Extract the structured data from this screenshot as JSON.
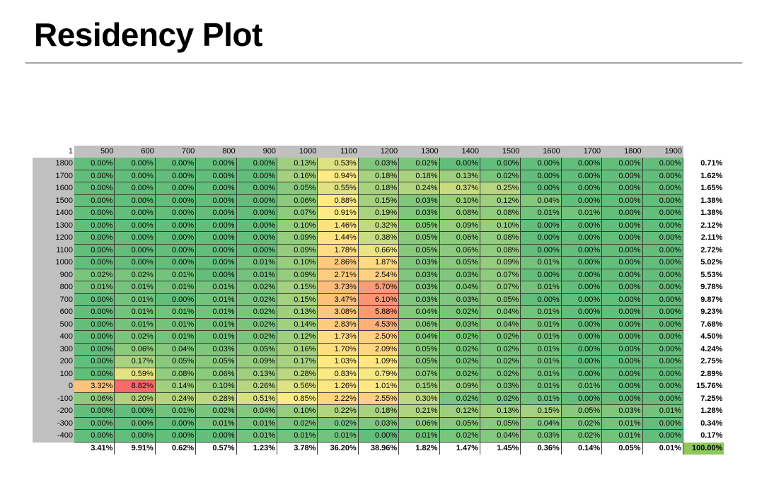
{
  "title": "Residency Plot",
  "chart_data": {
    "type": "heatmap",
    "title": "Residency Plot",
    "corner_label": "1",
    "x_labels": [
      "500",
      "600",
      "700",
      "800",
      "900",
      "1000",
      "1100",
      "1200",
      "1300",
      "1400",
      "1500",
      "1600",
      "1700",
      "1800",
      "1900"
    ],
    "y_labels": [
      "1800",
      "1700",
      "1600",
      "1500",
      "1400",
      "1300",
      "1200",
      "1100",
      "1000",
      "900",
      "800",
      "700",
      "600",
      "500",
      "400",
      "300",
      "200",
      "100",
      "0",
      "-100",
      "-200",
      "-300",
      "-400"
    ],
    "values": [
      [
        "0.00%",
        "0.00%",
        "0.00%",
        "0.00%",
        "0.00%",
        "0.13%",
        "0.53%",
        "0.03%",
        "0.02%",
        "0.00%",
        "0.00%",
        "0.00%",
        "0.00%",
        "0.00%",
        "0.00%"
      ],
      [
        "0.00%",
        "0.00%",
        "0.00%",
        "0.00%",
        "0.00%",
        "0.16%",
        "0.94%",
        "0.18%",
        "0.18%",
        "0.13%",
        "0.02%",
        "0.00%",
        "0.00%",
        "0.00%",
        "0.00%"
      ],
      [
        "0.00%",
        "0.00%",
        "0.00%",
        "0.00%",
        "0.00%",
        "0.05%",
        "0.55%",
        "0.18%",
        "0.24%",
        "0.37%",
        "0.25%",
        "0.00%",
        "0.00%",
        "0.00%",
        "0.00%"
      ],
      [
        "0.00%",
        "0.00%",
        "0.00%",
        "0.00%",
        "0.00%",
        "0.06%",
        "0.88%",
        "0.15%",
        "0.03%",
        "0.10%",
        "0.12%",
        "0.04%",
        "0.00%",
        "0.00%",
        "0.00%"
      ],
      [
        "0.00%",
        "0.00%",
        "0.00%",
        "0.00%",
        "0.00%",
        "0.07%",
        "0.91%",
        "0.19%",
        "0.03%",
        "0.08%",
        "0.08%",
        "0.01%",
        "0.01%",
        "0.00%",
        "0.00%"
      ],
      [
        "0.00%",
        "0.00%",
        "0.00%",
        "0.00%",
        "0.00%",
        "0.10%",
        "1.46%",
        "0.32%",
        "0.05%",
        "0.09%",
        "0.10%",
        "0.00%",
        "0.00%",
        "0.00%",
        "0.00%"
      ],
      [
        "0.00%",
        "0.00%",
        "0.00%",
        "0.00%",
        "0.00%",
        "0.09%",
        "1.44%",
        "0.38%",
        "0.05%",
        "0.06%",
        "0.08%",
        "0.00%",
        "0.00%",
        "0.00%",
        "0.00%"
      ],
      [
        "0.00%",
        "0.00%",
        "0.00%",
        "0.00%",
        "0.00%",
        "0.09%",
        "1.78%",
        "0.66%",
        "0.05%",
        "0.06%",
        "0.08%",
        "0.00%",
        "0.00%",
        "0.00%",
        "0.00%"
      ],
      [
        "0.00%",
        "0.00%",
        "0.00%",
        "0.00%",
        "0.01%",
        "0.10%",
        "2.86%",
        "1.87%",
        "0.03%",
        "0.05%",
        "0.09%",
        "0.01%",
        "0.00%",
        "0.00%",
        "0.00%"
      ],
      [
        "0.02%",
        "0.02%",
        "0.01%",
        "0.00%",
        "0.01%",
        "0.09%",
        "2.71%",
        "2.54%",
        "0.03%",
        "0.03%",
        "0.07%",
        "0.00%",
        "0.00%",
        "0.00%",
        "0.00%"
      ],
      [
        "0.01%",
        "0.01%",
        "0.01%",
        "0.01%",
        "0.02%",
        "0.15%",
        "3.73%",
        "5.70%",
        "0.03%",
        "0.04%",
        "0.07%",
        "0.01%",
        "0.00%",
        "0.00%",
        "0.00%"
      ],
      [
        "0.00%",
        "0.01%",
        "0.00%",
        "0.01%",
        "0.02%",
        "0.15%",
        "3.47%",
        "6.10%",
        "0.03%",
        "0.03%",
        "0.05%",
        "0.00%",
        "0.00%",
        "0.00%",
        "0.00%"
      ],
      [
        "0.00%",
        "0.01%",
        "0.01%",
        "0.01%",
        "0.02%",
        "0.13%",
        "3.08%",
        "5.88%",
        "0.04%",
        "0.02%",
        "0.04%",
        "0.01%",
        "0.00%",
        "0.00%",
        "0.00%"
      ],
      [
        "0.00%",
        "0.01%",
        "0.01%",
        "0.01%",
        "0.02%",
        "0.14%",
        "2.83%",
        "4.53%",
        "0.06%",
        "0.03%",
        "0.04%",
        "0.01%",
        "0.00%",
        "0.00%",
        "0.00%"
      ],
      [
        "0.00%",
        "0.02%",
        "0.01%",
        "0.01%",
        "0.02%",
        "0.12%",
        "1.73%",
        "2.50%",
        "0.04%",
        "0.02%",
        "0.02%",
        "0.01%",
        "0.00%",
        "0.00%",
        "0.00%"
      ],
      [
        "0.00%",
        "0.06%",
        "0.04%",
        "0.03%",
        "0.05%",
        "0.16%",
        "1.70%",
        "2.09%",
        "0.05%",
        "0.02%",
        "0.02%",
        "0.01%",
        "0.00%",
        "0.00%",
        "0.00%"
      ],
      [
        "0.00%",
        "0.17%",
        "0.05%",
        "0.05%",
        "0.09%",
        "0.17%",
        "1.03%",
        "1.09%",
        "0.05%",
        "0.02%",
        "0.02%",
        "0.01%",
        "0.00%",
        "0.00%",
        "0.00%"
      ],
      [
        "0.00%",
        "0.59%",
        "0.08%",
        "0.06%",
        "0.13%",
        "0.28%",
        "0.83%",
        "0.79%",
        "0.07%",
        "0.02%",
        "0.02%",
        "0.01%",
        "0.00%",
        "0.00%",
        "0.00%"
      ],
      [
        "3.32%",
        "8.82%",
        "0.14%",
        "0.10%",
        "0.26%",
        "0.56%",
        "1.26%",
        "1.01%",
        "0.15%",
        "0.09%",
        "0.03%",
        "0.01%",
        "0.01%",
        "0.00%",
        "0.00%"
      ],
      [
        "0.06%",
        "0.20%",
        "0.24%",
        "0.28%",
        "0.51%",
        "0.85%",
        "2.22%",
        "2.55%",
        "0.30%",
        "0.02%",
        "0.02%",
        "0.01%",
        "0.00%",
        "0.00%",
        "0.00%"
      ],
      [
        "0.00%",
        "0.00%",
        "0.01%",
        "0.02%",
        "0.04%",
        "0.10%",
        "0.22%",
        "0.18%",
        "0.21%",
        "0.12%",
        "0.13%",
        "0.15%",
        "0.05%",
        "0.03%",
        "0.01%"
      ],
      [
        "0.00%",
        "0.00%",
        "0.00%",
        "0.01%",
        "0.01%",
        "0.02%",
        "0.02%",
        "0.03%",
        "0.06%",
        "0.05%",
        "0.05%",
        "0.04%",
        "0.02%",
        "0.01%",
        "0.00%"
      ],
      [
        "0.00%",
        "0.00%",
        "0.00%",
        "0.00%",
        "0.01%",
        "0.01%",
        "0.01%",
        "0.00%",
        "0.01%",
        "0.02%",
        "0.04%",
        "0.03%",
        "0.02%",
        "0.01%",
        "0.00%"
      ]
    ],
    "row_totals": [
      "0.71%",
      "1.62%",
      "1.65%",
      "1.38%",
      "1.38%",
      "2.12%",
      "2.11%",
      "2.72%",
      "5.02%",
      "5.53%",
      "9.78%",
      "9.87%",
      "9.23%",
      "7.68%",
      "4.50%",
      "4.24%",
      "2.75%",
      "2.89%",
      "15.76%",
      "7.25%",
      "1.28%",
      "0.34%",
      "0.17%"
    ],
    "column_totals": [
      "3.41%",
      "9.91%",
      "0.62%",
      "0.57%",
      "1.23%",
      "3.78%",
      "36.20%",
      "38.96%",
      "1.82%",
      "1.47%",
      "1.45%",
      "0.36%",
      "0.14%",
      "0.05%",
      "0.01%"
    ],
    "grand_total": "100.00%",
    "colors": {
      "low": "#63be7b",
      "mid": "#ffeb84",
      "high": "#f8696b"
    }
  }
}
